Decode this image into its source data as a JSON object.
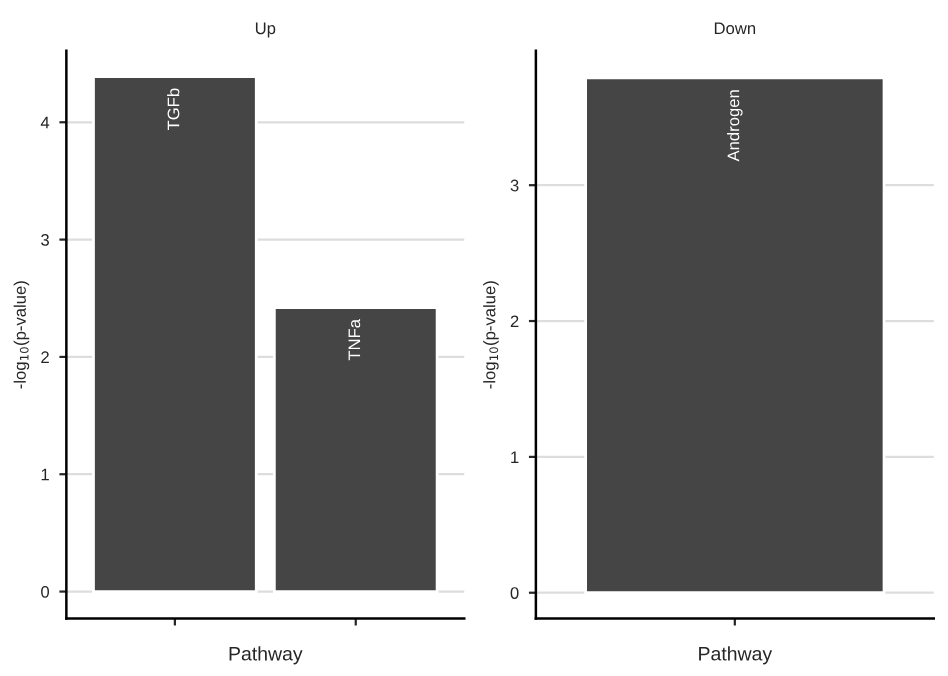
{
  "chart_data": [
    {
      "type": "bar",
      "title": "Up",
      "xlabel": "Pathway",
      "ylabel": "-log$_{10}$(p-value)",
      "categories": [
        "TGFb",
        "TNFa"
      ],
      "values": [
        4.39,
        2.42
      ],
      "color": "#454545",
      "ylim": [
        -0.23,
        4.61
      ],
      "yticks": [
        0,
        1,
        2,
        3,
        4
      ],
      "grid": "y"
    },
    {
      "type": "bar",
      "title": "Down",
      "xlabel": "Pathway",
      "ylabel": "-log$_{10}$(p-value)",
      "categories": [
        null
      ],
      "values": [
        3.79
      ],
      "color": "#454545",
      "ylim": [
        -0.19,
        3.99
      ],
      "yticks": [
        0,
        1,
        2,
        3
      ],
      "grid": "y",
      "annotations": [
        {
          "text": "Androgen",
          "y": 3.79
        }
      ]
    }
  ]
}
